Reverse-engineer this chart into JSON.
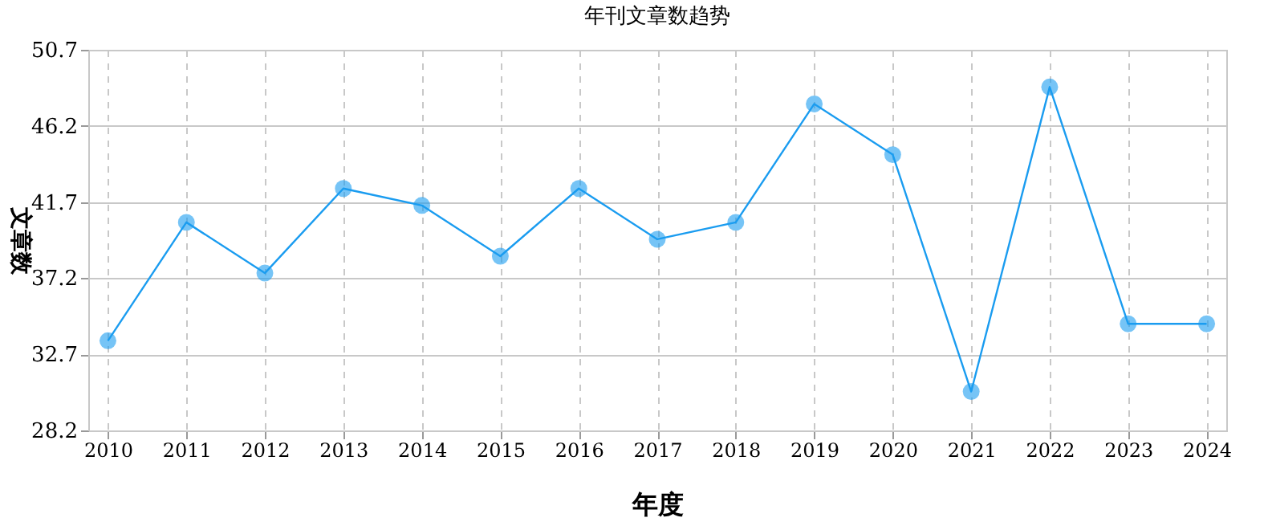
{
  "chart_data": {
    "type": "line",
    "title": "年刊文章数趋势",
    "xlabel": "年度",
    "ylabel": "文章数",
    "categories": [
      "2010",
      "2011",
      "2012",
      "2013",
      "2014",
      "2015",
      "2016",
      "2017",
      "2018",
      "2019",
      "2020",
      "2021",
      "2022",
      "2023",
      "2024"
    ],
    "series": [
      {
        "color": "#1a9cf0",
        "values": [
          33.5,
          40.5,
          37.5,
          42.5,
          41.5,
          38.5,
          42.5,
          39.5,
          40.5,
          47.5,
          44.5,
          30.5,
          48.5,
          34.5,
          34.5
        ]
      }
    ],
    "ylim": [
      28.2,
      50.7
    ],
    "yticks": [
      28.2,
      32.7,
      37.2,
      41.7,
      46.2,
      50.7
    ],
    "grid": true,
    "marker": "circle",
    "line_style": "solid"
  }
}
